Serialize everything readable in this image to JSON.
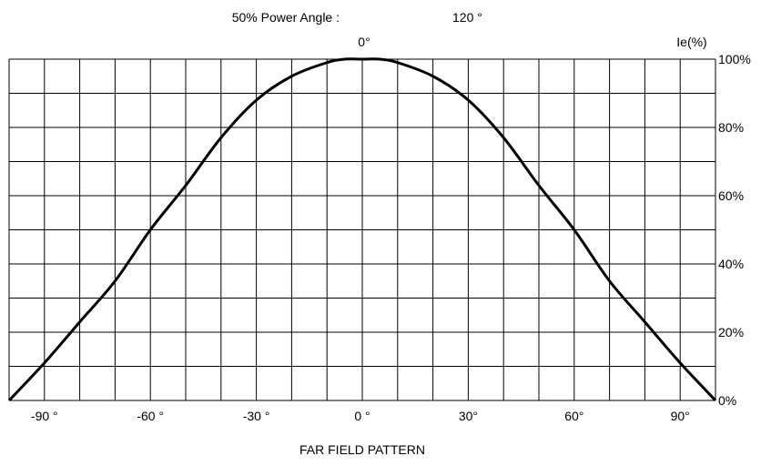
{
  "header": {
    "power_angle_label": "50% Power Angle :",
    "power_angle_value": "120 °",
    "center_label": "0°",
    "y_unit_label": "Ie(%)"
  },
  "caption": "FAR FIELD PATTERN",
  "chart_data": {
    "type": "line",
    "title": "FAR FIELD PATTERN",
    "xlabel": "",
    "ylabel": "Ie(%)",
    "xlim": [
      -100,
      100
    ],
    "ylim": [
      0,
      100
    ],
    "x_tick_values": [
      -90,
      -60,
      -30,
      0,
      30,
      60,
      90
    ],
    "x_tick_labels": [
      "-90 °",
      "-60 °",
      "-30 °",
      "0 °",
      "30°",
      "60°",
      "90°"
    ],
    "y_tick_values": [
      0,
      20,
      40,
      60,
      80,
      100
    ],
    "y_tick_labels": [
      "0%",
      "20%",
      "40%",
      "60%",
      "80%",
      "100%"
    ],
    "grid": true,
    "grid_x_step": 10,
    "grid_y_step": 10,
    "line_color": "#000000",
    "series": [
      {
        "x": [
          -100,
          -90,
          -80,
          -70,
          -60,
          -50,
          -40,
          -30,
          -20,
          -10,
          -5,
          0,
          5,
          10,
          20,
          30,
          40,
          50,
          60,
          70,
          80,
          90,
          100
        ],
        "y": [
          0,
          11,
          23,
          35,
          50,
          63,
          77,
          88,
          95,
          99,
          100,
          100,
          100,
          99,
          95,
          88,
          77,
          63,
          50,
          35,
          23,
          11,
          0
        ]
      }
    ]
  }
}
